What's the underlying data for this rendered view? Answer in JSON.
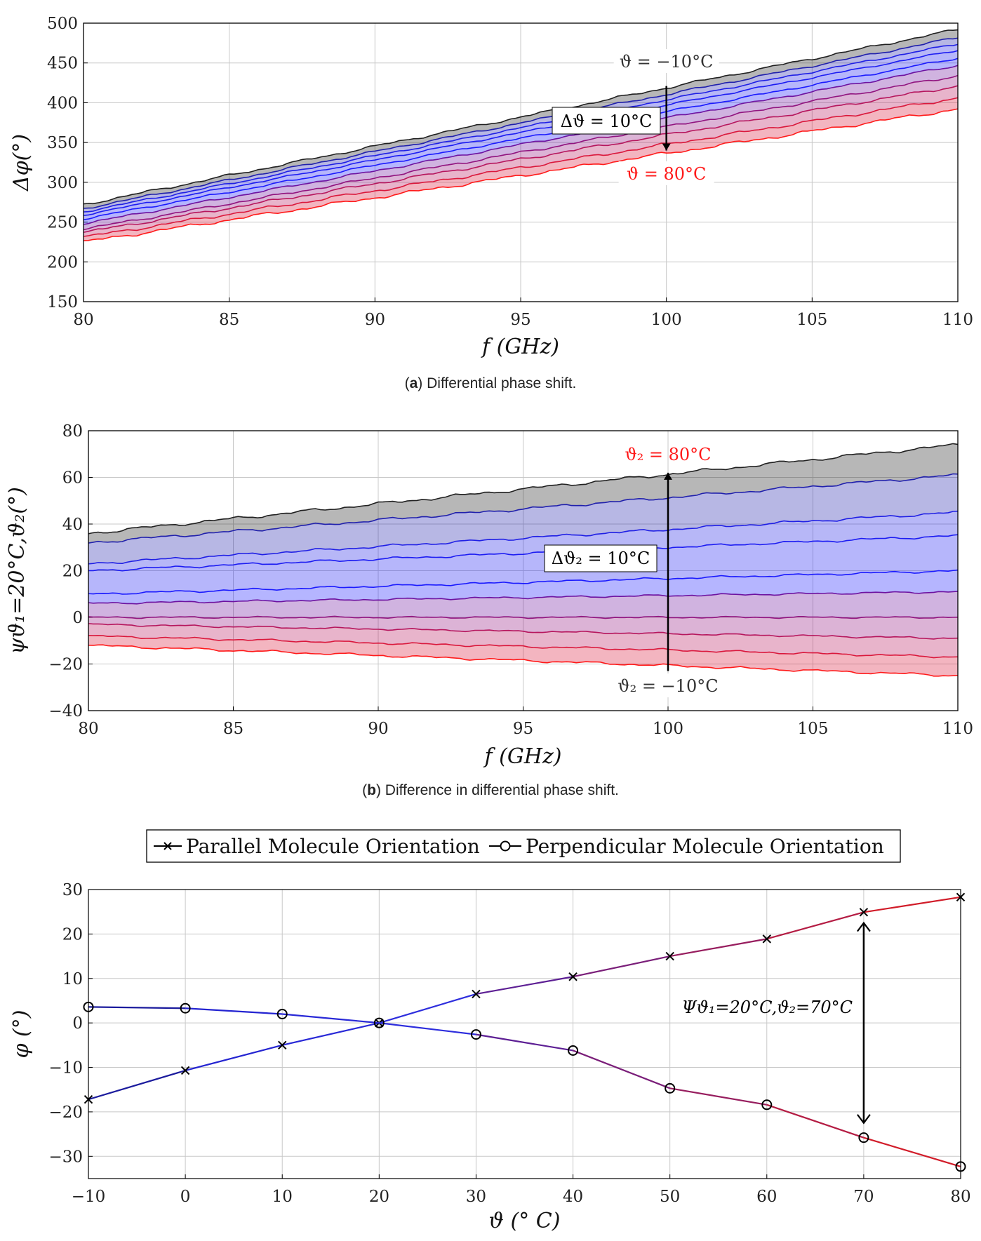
{
  "colors": {
    "cold": "#202020",
    "blue": "#1a1aff",
    "red": "#ff1a1a",
    "grid": "#c8c8c8"
  },
  "chart_data": [
    {
      "type": "area",
      "title": "",
      "caption_label": "a",
      "caption_text": " Differential phase shift.",
      "xlabel": "f (GHz)",
      "ylabel": "Δφ(°)",
      "xlim": [
        80,
        110
      ],
      "ylim": [
        150,
        500
      ],
      "xticks": [
        80,
        85,
        90,
        95,
        100,
        105,
        110
      ],
      "yticks": [
        150,
        200,
        250,
        300,
        350,
        400,
        450,
        500
      ],
      "x": [
        80,
        110
      ],
      "series": [
        {
          "name": "ϑ = −10°C",
          "values": [
            272,
            492
          ]
        },
        {
          "name": "ϑ = 0°C",
          "values": [
            267,
            482
          ]
        },
        {
          "name": "ϑ = 10°C",
          "values": [
            263,
            474
          ]
        },
        {
          "name": "ϑ = 20°C",
          "values": [
            259,
            466
          ]
        },
        {
          "name": "ϑ = 30°C",
          "values": [
            254,
            456
          ]
        },
        {
          "name": "ϑ = 40°C",
          "values": [
            248,
            447
          ]
        },
        {
          "name": "ϑ = 50°C",
          "values": [
            241,
            434
          ]
        },
        {
          "name": "ϑ = 60°C",
          "values": [
            237,
            421
          ]
        },
        {
          "name": "ϑ = 70°C",
          "values": [
            231,
            406
          ]
        },
        {
          "name": "ϑ = 80°C",
          "values": [
            225,
            392
          ]
        }
      ],
      "annotations": {
        "top_label": "ϑ = −10°C",
        "bottom_label": "ϑ = 80°C",
        "step_label": "Δϑ = 10°C",
        "arrow_x": 100,
        "arrow_from": 421,
        "arrow_to": 340
      }
    },
    {
      "type": "area",
      "title": "",
      "caption_label": "b",
      "caption_text": " Difference in differential phase shift.",
      "xlabel": "f (GHz)",
      "ylabel": "ψϑ₁=20°C,ϑ₂(°)",
      "xlim": [
        80,
        110
      ],
      "ylim": [
        -40,
        80
      ],
      "xticks": [
        80,
        85,
        90,
        95,
        100,
        105,
        110
      ],
      "yticks": [
        -40,
        -20,
        0,
        20,
        40,
        60,
        80
      ],
      "x": [
        80,
        110
      ],
      "series": [
        {
          "name": "ϑ₂ = −10°C",
          "values": [
            -12,
            -25
          ]
        },
        {
          "name": "ϑ₂ = 0°C",
          "values": [
            -8,
            -17
          ]
        },
        {
          "name": "ϑ₂ = 10°C",
          "values": [
            -3,
            -9
          ]
        },
        {
          "name": "ϑ₂ = 20°C",
          "values": [
            0,
            0
          ]
        },
        {
          "name": "ϑ₂ = 30°C",
          "values": [
            6,
            11
          ]
        },
        {
          "name": "ϑ₂ = 40°C",
          "values": [
            10,
            20
          ]
        },
        {
          "name": "ϑ₂ = 50°C",
          "values": [
            20,
            35
          ]
        },
        {
          "name": "ϑ₂ = 60°C",
          "values": [
            23,
            45
          ]
        },
        {
          "name": "ϑ₂ = 70°C",
          "values": [
            32,
            61
          ]
        },
        {
          "name": "ϑ₂ = 80°C",
          "values": [
            36,
            74
          ]
        }
      ],
      "annotations": {
        "top_label": "ϑ₂ = 80°C",
        "bottom_label": "ϑ₂ = −10°C",
        "step_label": "Δϑ₂ = 10°C",
        "arrow_x": 100,
        "arrow_from": -23,
        "arrow_to": 62
      }
    },
    {
      "type": "line",
      "title": "",
      "xlabel": "ϑ (° C)",
      "ylabel": "φ (°)",
      "xlim": [
        -10,
        80
      ],
      "ylim": [
        -35,
        30
      ],
      "xticks": [
        -10,
        0,
        10,
        20,
        30,
        40,
        50,
        60,
        70,
        80
      ],
      "yticks": [
        -30,
        -20,
        -10,
        0,
        10,
        20,
        30
      ],
      "x": [
        -10,
        0,
        10,
        20,
        30,
        40,
        50,
        60,
        70,
        80
      ],
      "series": [
        {
          "name": "Parallel Molecule Orientation",
          "marker": "x",
          "values": [
            -17.2,
            -10.7,
            -5.0,
            0.0,
            6.5,
            10.4,
            15.0,
            18.9,
            24.9,
            28.3
          ]
        },
        {
          "name": "Perpendicular Molecule Orientation",
          "marker": "o",
          "values": [
            3.6,
            3.3,
            2.0,
            0.0,
            -2.6,
            -6.2,
            -14.7,
            -18.4,
            -25.8,
            -32.3
          ]
        }
      ],
      "legend": "top",
      "annotations": {
        "psi_label": "Ψϑ₁=20°C,ϑ₂=70°C",
        "arrow_x": 70,
        "arrow_from": -22.5,
        "arrow_to": 22.5
      }
    }
  ]
}
